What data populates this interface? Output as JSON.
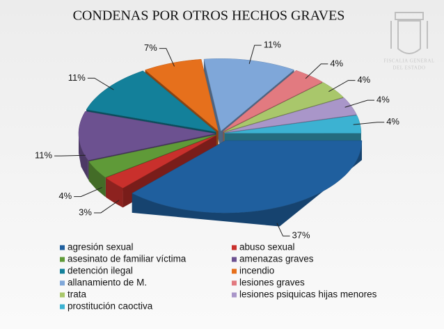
{
  "chart_data": {
    "type": "pie",
    "title": "CONDENAS POR OTROS HECHOS GRAVES",
    "categories": [
      "agresión sexual",
      "abuso sexual",
      "asesinato de familiar víctima",
      "amenazas graves",
      "detención ilegal",
      "incendio",
      "allanamiento de M.",
      "lesiones graves",
      "trata",
      "lesiones psiquicas hijas menores",
      "prostitución caoctiva"
    ],
    "values": [
      37,
      3,
      4,
      11,
      11,
      7,
      11,
      4,
      4,
      4,
      4
    ],
    "value_labels": [
      "37%",
      "3%",
      "4%",
      "11%",
      "11%",
      "7%",
      "11%",
      "4%",
      "4%",
      "4%",
      "4%"
    ],
    "colors": [
      "#1f5f9e",
      "#c9302c",
      "#5f9a38",
      "#6c5190",
      "#13809a",
      "#e6701c",
      "#7fa7d9",
      "#e27a80",
      "#a9c76b",
      "#a996c9",
      "#3cb2d2"
    ],
    "legend": "bottom"
  },
  "logo": {
    "lines": [
      "FISCALIA GENERAL",
      "DEL ESTADO"
    ]
  }
}
